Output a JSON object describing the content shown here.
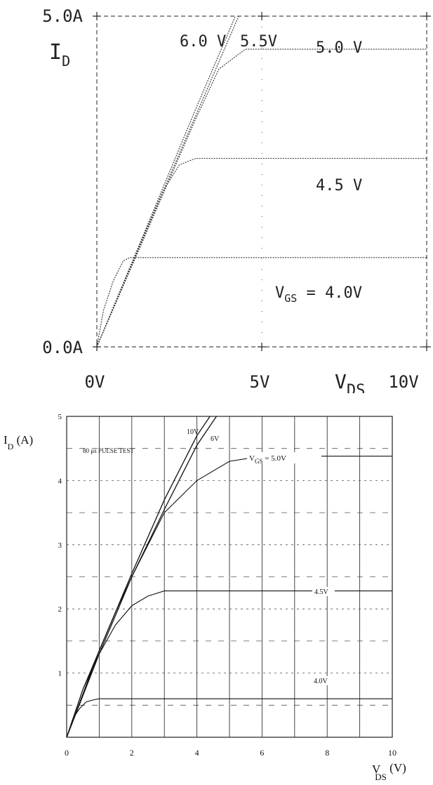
{
  "chart_data": [
    {
      "type": "line",
      "ytop_label": "5.0A",
      "ybottom_label": "0.0A",
      "ylabel_main": "I",
      "ylabel_sub": "D",
      "xtick_labels": [
        "0V",
        "5V"
      ],
      "xlabel_main": "V",
      "xlabel_sub": "DS",
      "xmax_label": "10V",
      "xlim": [
        0,
        10
      ],
      "ylim": [
        0,
        5
      ],
      "series": [
        {
          "name": "V_GS = 4.0V",
          "label": "4.0V",
          "label_prefix_main": "V",
          "label_prefix_sub": "GS",
          "label_prefix_eq": " = ",
          "x": [
            0,
            0.2,
            0.5,
            0.8,
            1.0,
            10
          ],
          "y": [
            0,
            0.55,
            1.0,
            1.3,
            1.35,
            1.35
          ]
        },
        {
          "name": "4.5 V",
          "label": "4.5 V",
          "x": [
            0,
            1.0,
            2.0,
            2.5,
            3.0,
            10
          ],
          "y": [
            0,
            1.2,
            2.35,
            2.75,
            2.85,
            2.85
          ]
        },
        {
          "name": "5.0 V",
          "label": "5.0 V",
          "x": [
            0,
            1.0,
            2.0,
            3.0,
            3.7,
            4.5,
            10
          ],
          "y": [
            0,
            1.15,
            2.3,
            3.45,
            4.2,
            4.5,
            4.5
          ]
        },
        {
          "name": "5.5V",
          "label": "5.5V",
          "x": [
            0,
            1.0,
            2.0,
            3.0,
            4.3
          ],
          "y": [
            0,
            1.17,
            2.34,
            3.5,
            5.0
          ]
        },
        {
          "name": "6.0 V",
          "label": "6.0 V",
          "x": [
            0,
            1.0,
            2.0,
            3.0,
            4.2
          ],
          "y": [
            0,
            1.2,
            2.4,
            3.6,
            5.0
          ]
        }
      ]
    },
    {
      "type": "line",
      "ylabel": "I",
      "ylabel_sub": "D",
      "ylabel_unit": "(A)",
      "xlabel": "V",
      "xlabel_sub": "DS",
      "xlabel_unit": "(V)",
      "annotation": "80 μs PULSE TEST",
      "xlim": [
        0,
        10
      ],
      "ylim": [
        0,
        5
      ],
      "xticks": [
        0,
        2,
        4,
        6,
        8,
        10
      ],
      "xtick_labels": [
        "0",
        "2",
        "4",
        "6",
        "8",
        "10"
      ],
      "yticks": [
        1,
        2,
        3,
        4,
        5
      ],
      "ytick_labels": [
        "1",
        "2",
        "3",
        "4",
        "5"
      ],
      "grid": true,
      "series": [
        {
          "name": "4.0V",
          "label": "4.0V",
          "x": [
            0,
            0.2,
            0.4,
            0.6,
            0.8,
            1.0,
            10
          ],
          "y": [
            0,
            0.3,
            0.45,
            0.55,
            0.58,
            0.6,
            0.6
          ]
        },
        {
          "name": "4.5V",
          "label": "4.5V",
          "x": [
            0,
            0.5,
            1.0,
            1.5,
            2.0,
            2.5,
            3.0,
            10
          ],
          "y": [
            0,
            0.75,
            1.3,
            1.75,
            2.05,
            2.2,
            2.28,
            2.28
          ]
        },
        {
          "name": "V_GS = 5.0V",
          "label": "5.0V",
          "label_prefix_main": "V",
          "label_prefix_sub": "GS",
          "label_prefix_eq": " = ",
          "x": [
            0,
            0.5,
            1.0,
            1.5,
            2.0,
            3.0,
            4.0,
            5.0,
            6.0,
            10
          ],
          "y": [
            0,
            0.75,
            1.35,
            1.95,
            2.5,
            3.5,
            4.0,
            4.3,
            4.38,
            4.38
          ]
        },
        {
          "name": "6V",
          "label": "6V",
          "x": [
            0,
            1.0,
            2.0,
            3.0,
            4.0,
            4.6
          ],
          "y": [
            0,
            1.3,
            2.5,
            3.55,
            4.55,
            5.0
          ]
        },
        {
          "name": "10V",
          "label": "10V",
          "x": [
            0,
            1.0,
            2.0,
            3.0,
            4.0,
            4.4
          ],
          "y": [
            0,
            1.35,
            2.55,
            3.7,
            4.7,
            5.0
          ]
        }
      ]
    }
  ]
}
